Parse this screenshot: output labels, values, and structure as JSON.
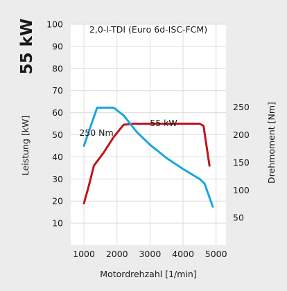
{
  "chart_data": {
    "type": "line",
    "badge": "55 kW",
    "title": "2,0-l-TDI (Euro 6d-ISC-FCM)",
    "xlabel": "Motordrehzahl [1/min]",
    "ylabel_left": "Leistung [kW]",
    "ylabel_right": "Drehmoment [Nm]",
    "x_ticks": [
      1000,
      2000,
      3000,
      4000,
      5000
    ],
    "y_left_ticks": [
      10,
      20,
      30,
      40,
      50,
      60,
      70,
      80,
      90,
      100
    ],
    "y_right_ticks": [
      50,
      100,
      150,
      200,
      250
    ],
    "xlim": [
      600,
      5300
    ],
    "ylim_left": [
      0,
      100
    ],
    "ylim_right": [
      0,
      400
    ],
    "grid": true,
    "series": [
      {
        "name": "Leistung",
        "axis": "left",
        "color": "#c0141c",
        "label": "55 kW",
        "points": [
          [
            1000,
            19
          ],
          [
            1150,
            27
          ],
          [
            1300,
            36
          ],
          [
            1600,
            42
          ],
          [
            1900,
            49
          ],
          [
            2200,
            54.5
          ],
          [
            2500,
            55
          ],
          [
            3000,
            55
          ],
          [
            3500,
            55
          ],
          [
            4000,
            55
          ],
          [
            4500,
            55
          ],
          [
            4620,
            54
          ],
          [
            4800,
            36
          ]
        ]
      },
      {
        "name": "Drehmoment",
        "axis": "right",
        "color": "#1aa6de",
        "label": "250 Nm",
        "points": [
          [
            1000,
            180
          ],
          [
            1400,
            249
          ],
          [
            1900,
            249
          ],
          [
            2200,
            235
          ],
          [
            2600,
            205
          ],
          [
            3000,
            182
          ],
          [
            3500,
            158
          ],
          [
            4000,
            138
          ],
          [
            4500,
            120
          ],
          [
            4650,
            112
          ],
          [
            4900,
            70
          ]
        ]
      }
    ]
  }
}
